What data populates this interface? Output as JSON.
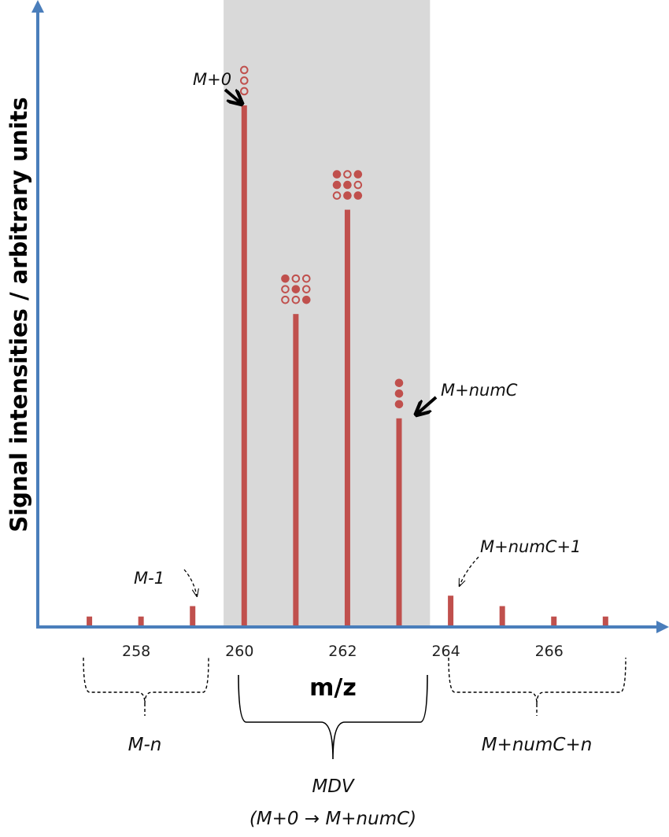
{
  "chart_data": {
    "type": "bar",
    "title": "",
    "xlabel": "m/z",
    "ylabel": "Signal intensities / arbitrary units",
    "x": [
      257,
      258,
      259,
      260,
      261,
      262,
      263,
      264,
      265,
      266,
      267
    ],
    "values": [
      2,
      2,
      4,
      100,
      60,
      80,
      40,
      6,
      4,
      2,
      2
    ],
    "xlim": [
      256,
      268.2
    ],
    "ylim": [
      0,
      119
    ],
    "x_tick_labels": [
      "258",
      "260",
      "262",
      "264",
      "266"
    ],
    "x_ticks": [
      258,
      260,
      262,
      264,
      266
    ],
    "shaded_range": [
      259.6,
      263.6
    ],
    "grid": false,
    "isotopologue_patterns": [
      {
        "x": 260,
        "rows": [
          [
            0
          ],
          [
            0
          ],
          [
            0
          ]
        ]
      },
      {
        "x": 261,
        "rows": [
          [
            1,
            0,
            0
          ],
          [
            0,
            1,
            0
          ],
          [
            0,
            0,
            1
          ]
        ]
      },
      {
        "x": 262,
        "rows": [
          [
            1,
            0,
            1
          ],
          [
            1,
            1,
            0
          ],
          [
            0,
            1,
            1
          ]
        ]
      },
      {
        "x": 263,
        "rows": [
          [
            1
          ],
          [
            1
          ],
          [
            1
          ]
        ]
      }
    ],
    "annotations": {
      "m0": "M+0",
      "mnumc": "M+numC",
      "m_minus_1": "M-1",
      "mnumc_plus_1": "M+numC+1",
      "m_minus_n": "M-n",
      "mnumc_plus_n": "M+numC+n",
      "mdv": "MDV",
      "mdv_range": "(M+0 → M+numC)"
    },
    "colors": {
      "bar": "#c0504d",
      "axis": "#4a7ebb",
      "shade": "#d9d9d9"
    }
  }
}
